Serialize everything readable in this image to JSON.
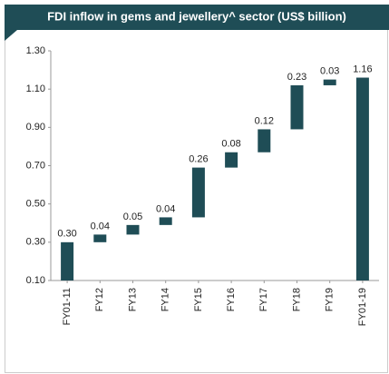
{
  "chart_data": {
    "type": "waterfall",
    "title": "FDI inflow in gems and jewellery^ sector (US$ billion)",
    "categories": [
      "FY01-11",
      "FY12",
      "FY13",
      "FY14",
      "FY15",
      "FY16",
      "FY17",
      "FY18",
      "FY19",
      "FY01-19"
    ],
    "values": [
      0.3,
      0.04,
      0.05,
      0.04,
      0.26,
      0.08,
      0.12,
      0.23,
      0.03,
      1.16
    ],
    "value_labels": [
      "0.30",
      "0.04",
      "0.05",
      "0.04",
      "0.26",
      "0.08",
      "0.12",
      "0.23",
      "0.03",
      "1.16"
    ],
    "color": "#1f4d56",
    "ylim": [
      0.1,
      1.3
    ],
    "yticks": [
      {
        "value": 0.1,
        "label": "0.10"
      },
      {
        "value": 0.3,
        "label": "0.30"
      },
      {
        "value": 0.5,
        "label": "0.50"
      },
      {
        "value": 0.7,
        "label": "0.70"
      },
      {
        "value": 0.9,
        "label": "0.90"
      },
      {
        "value": 1.1,
        "label": "1.10"
      },
      {
        "value": 1.3,
        "label": "1.30"
      }
    ]
  }
}
